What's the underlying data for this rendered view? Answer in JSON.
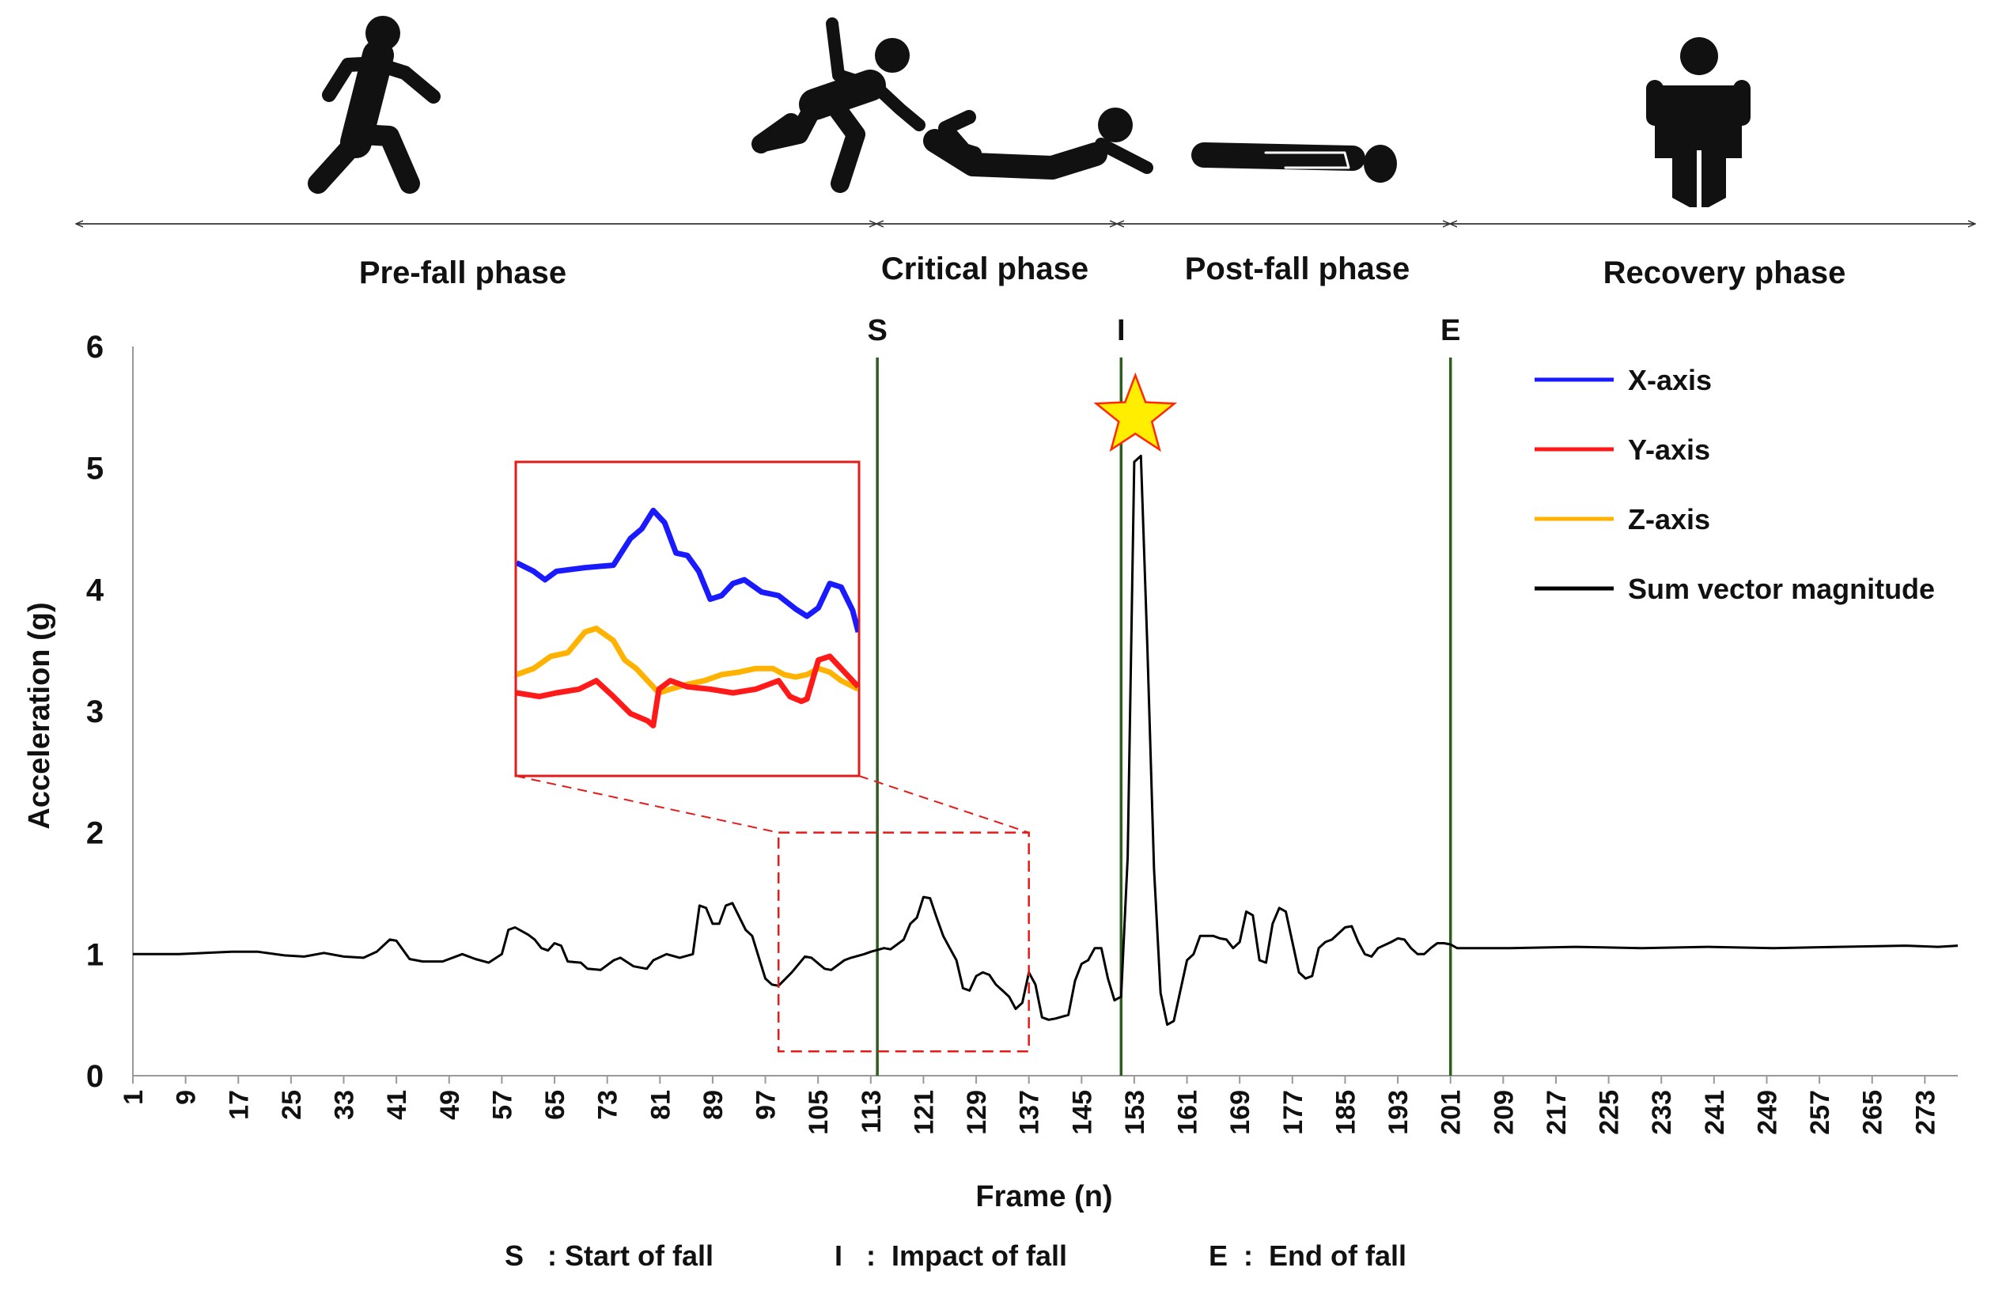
{
  "phases": [
    {
      "label": "Pre-fall phase",
      "icon": "walking-person-icon"
    },
    {
      "label": "Critical phase",
      "icon": "falling-person-icon"
    },
    {
      "label": "Post-fall phase",
      "icon": "lying-person-icon"
    },
    {
      "label": "Recovery phase",
      "icon": "standing-person-icon"
    }
  ],
  "markers": [
    {
      "label": "S",
      "frame": 114
    },
    {
      "label": "I",
      "frame": 151
    },
    {
      "label": "E",
      "frame": 201
    }
  ],
  "footnote": {
    "s": "S   : Start of fall",
    "i": "I   :  Impact of fall",
    "e": "E  :  End of fall"
  },
  "colors": {
    "x_axis": "#1a1aff",
    "y_axis": "#ff1a1a",
    "z_axis": "#ffb300",
    "svm": "#000000",
    "marker_line": "#2e5e1e",
    "star_fill": "#ffee00",
    "star_stroke": "#ff2a00",
    "zoom_box": "#e21b1b"
  },
  "chart_data": {
    "type": "line",
    "title": "",
    "xlabel": "Frame (n)",
    "ylabel": "Acceleration (g)",
    "xlim": [
      1,
      278
    ],
    "ylim": [
      0,
      6
    ],
    "yticks": [
      0,
      1,
      2,
      3,
      4,
      5,
      6
    ],
    "xticks": [
      1,
      9,
      17,
      25,
      33,
      41,
      49,
      57,
      65,
      73,
      81,
      89,
      97,
      105,
      113,
      121,
      129,
      137,
      145,
      153,
      161,
      169,
      177,
      185,
      193,
      201,
      209,
      217,
      225,
      233,
      241,
      249,
      257,
      265,
      273
    ],
    "legend": [
      "X-axis",
      "Y-axis",
      "Z-axis",
      "Sum vector magnitude"
    ],
    "series": [
      {
        "name": "Sum vector magnitude",
        "points": [
          [
            1,
            1.0
          ],
          [
            8,
            1.0
          ],
          [
            12,
            1.01
          ],
          [
            16,
            1.02
          ],
          [
            20,
            1.02
          ],
          [
            24,
            0.99
          ],
          [
            27,
            0.98
          ],
          [
            30,
            1.01
          ],
          [
            33,
            0.98
          ],
          [
            36,
            0.97
          ],
          [
            38,
            1.02
          ],
          [
            40,
            1.12
          ],
          [
            41,
            1.11
          ],
          [
            43,
            0.96
          ],
          [
            45,
            0.94
          ],
          [
            48,
            0.94
          ],
          [
            51,
            1.0
          ],
          [
            53,
            0.96
          ],
          [
            55,
            0.93
          ],
          [
            57,
            1.0
          ],
          [
            58,
            1.2
          ],
          [
            59,
            1.22
          ],
          [
            61,
            1.16
          ],
          [
            62,
            1.12
          ],
          [
            63,
            1.05
          ],
          [
            64,
            1.03
          ],
          [
            65,
            1.09
          ],
          [
            66,
            1.07
          ],
          [
            67,
            0.94
          ],
          [
            69,
            0.93
          ],
          [
            70,
            0.88
          ],
          [
            72,
            0.87
          ],
          [
            74,
            0.95
          ],
          [
            75,
            0.97
          ],
          [
            77,
            0.9
          ],
          [
            79,
            0.88
          ],
          [
            80,
            0.95
          ],
          [
            82,
            1.0
          ],
          [
            84,
            0.97
          ],
          [
            86,
            1.0
          ],
          [
            87,
            1.4
          ],
          [
            88,
            1.38
          ],
          [
            89,
            1.25
          ],
          [
            90,
            1.25
          ],
          [
            91,
            1.4
          ],
          [
            92,
            1.42
          ],
          [
            94,
            1.2
          ],
          [
            95,
            1.15
          ],
          [
            97,
            0.8
          ],
          [
            98,
            0.75
          ],
          [
            99,
            0.74
          ],
          [
            101,
            0.85
          ],
          [
            103,
            0.98
          ],
          [
            104,
            0.97
          ],
          [
            106,
            0.88
          ],
          [
            107,
            0.87
          ],
          [
            109,
            0.95
          ],
          [
            110,
            0.97
          ],
          [
            112,
            1.0
          ],
          [
            113,
            1.02
          ],
          [
            115,
            1.05
          ],
          [
            116,
            1.04
          ],
          [
            118,
            1.12
          ],
          [
            119,
            1.25
          ],
          [
            120,
            1.3
          ],
          [
            121,
            1.47
          ],
          [
            122,
            1.46
          ],
          [
            123,
            1.3
          ],
          [
            124,
            1.15
          ],
          [
            125,
            1.05
          ],
          [
            126,
            0.95
          ],
          [
            127,
            0.72
          ],
          [
            128,
            0.7
          ],
          [
            129,
            0.82
          ],
          [
            130,
            0.85
          ],
          [
            131,
            0.83
          ],
          [
            132,
            0.75
          ],
          [
            133,
            0.7
          ],
          [
            134,
            0.65
          ],
          [
            135,
            0.55
          ],
          [
            136,
            0.6
          ],
          [
            137,
            0.85
          ],
          [
            138,
            0.75
          ],
          [
            139,
            0.48
          ],
          [
            140,
            0.46
          ],
          [
            141,
            0.47
          ],
          [
            143,
            0.5
          ],
          [
            144,
            0.78
          ],
          [
            145,
            0.92
          ],
          [
            146,
            0.95
          ],
          [
            147,
            1.05
          ],
          [
            148,
            1.05
          ],
          [
            149,
            0.8
          ],
          [
            150,
            0.62
          ],
          [
            151,
            0.65
          ],
          [
            152,
            1.8
          ],
          [
            153,
            5.05
          ],
          [
            154,
            5.1
          ],
          [
            155,
            3.5
          ],
          [
            156,
            1.7
          ],
          [
            157,
            0.68
          ],
          [
            158,
            0.42
          ],
          [
            159,
            0.45
          ],
          [
            160,
            0.7
          ],
          [
            161,
            0.95
          ],
          [
            162,
            1.0
          ],
          [
            163,
            1.15
          ],
          [
            164,
            1.15
          ],
          [
            165,
            1.15
          ],
          [
            166,
            1.13
          ],
          [
            167,
            1.12
          ],
          [
            168,
            1.05
          ],
          [
            169,
            1.1
          ],
          [
            170,
            1.35
          ],
          [
            171,
            1.32
          ],
          [
            172,
            0.95
          ],
          [
            173,
            0.93
          ],
          [
            174,
            1.25
          ],
          [
            175,
            1.38
          ],
          [
            176,
            1.35
          ],
          [
            177,
            1.1
          ],
          [
            178,
            0.85
          ],
          [
            179,
            0.8
          ],
          [
            180,
            0.82
          ],
          [
            181,
            1.05
          ],
          [
            182,
            1.1
          ],
          [
            183,
            1.12
          ],
          [
            185,
            1.22
          ],
          [
            186,
            1.23
          ],
          [
            187,
            1.1
          ],
          [
            188,
            1.0
          ],
          [
            189,
            0.98
          ],
          [
            190,
            1.05
          ],
          [
            192,
            1.1
          ],
          [
            193,
            1.13
          ],
          [
            194,
            1.12
          ],
          [
            195,
            1.05
          ],
          [
            196,
            1.0
          ],
          [
            197,
            1.0
          ],
          [
            198,
            1.05
          ],
          [
            199,
            1.09
          ],
          [
            200,
            1.09
          ],
          [
            201,
            1.08
          ],
          [
            202,
            1.05
          ],
          [
            210,
            1.05
          ],
          [
            220,
            1.06
          ],
          [
            230,
            1.05
          ],
          [
            240,
            1.06
          ],
          [
            250,
            1.05
          ],
          [
            260,
            1.06
          ],
          [
            270,
            1.07
          ],
          [
            275,
            1.06
          ],
          [
            278,
            1.07
          ]
        ]
      },
      {
        "name": "X-axis",
        "inset": true,
        "points": [
          [
            0,
            4.22
          ],
          [
            3,
            4.15
          ],
          [
            5,
            4.08
          ],
          [
            7,
            4.15
          ],
          [
            12,
            4.18
          ],
          [
            17,
            4.2
          ],
          [
            20,
            4.42
          ],
          [
            22,
            4.5
          ],
          [
            24,
            4.65
          ],
          [
            26,
            4.55
          ],
          [
            28,
            4.3
          ],
          [
            30,
            4.28
          ],
          [
            32,
            4.15
          ],
          [
            34,
            3.92
          ],
          [
            36,
            3.95
          ],
          [
            38,
            4.05
          ],
          [
            40,
            4.08
          ],
          [
            43,
            3.98
          ],
          [
            46,
            3.95
          ],
          [
            49,
            3.84
          ],
          [
            51,
            3.78
          ],
          [
            53,
            3.85
          ],
          [
            55,
            4.05
          ],
          [
            57,
            4.02
          ],
          [
            59,
            3.83
          ],
          [
            60,
            3.65
          ]
        ]
      },
      {
        "name": "Y-axis",
        "inset": true,
        "points": [
          [
            0,
            3.15
          ],
          [
            4,
            3.12
          ],
          [
            7,
            3.15
          ],
          [
            11,
            3.18
          ],
          [
            14,
            3.25
          ],
          [
            17,
            3.12
          ],
          [
            20,
            2.98
          ],
          [
            23,
            2.92
          ],
          [
            24,
            2.88
          ],
          [
            25,
            3.18
          ],
          [
            27,
            3.25
          ],
          [
            30,
            3.2
          ],
          [
            34,
            3.18
          ],
          [
            38,
            3.15
          ],
          [
            42,
            3.18
          ],
          [
            46,
            3.25
          ],
          [
            48,
            3.12
          ],
          [
            50,
            3.08
          ],
          [
            51,
            3.1
          ],
          [
            53,
            3.42
          ],
          [
            55,
            3.45
          ],
          [
            57,
            3.35
          ],
          [
            60,
            3.2
          ]
        ]
      },
      {
        "name": "Z-axis",
        "inset": true,
        "points": [
          [
            0,
            3.3
          ],
          [
            3,
            3.35
          ],
          [
            6,
            3.45
          ],
          [
            9,
            3.48
          ],
          [
            12,
            3.65
          ],
          [
            14,
            3.68
          ],
          [
            17,
            3.58
          ],
          [
            19,
            3.42
          ],
          [
            21,
            3.35
          ],
          [
            23,
            3.25
          ],
          [
            25,
            3.15
          ],
          [
            27,
            3.18
          ],
          [
            30,
            3.22
          ],
          [
            33,
            3.25
          ],
          [
            36,
            3.3
          ],
          [
            39,
            3.32
          ],
          [
            42,
            3.35
          ],
          [
            45,
            3.35
          ],
          [
            47,
            3.3
          ],
          [
            49,
            3.28
          ],
          [
            51,
            3.3
          ],
          [
            53,
            3.35
          ],
          [
            55,
            3.32
          ],
          [
            57,
            3.25
          ],
          [
            60,
            3.18
          ]
        ]
      }
    ],
    "zoom_region": {
      "frames": [
        99,
        137
      ],
      "g": [
        0.2,
        2.0
      ]
    },
    "peak_marker": {
      "frame": 154,
      "value": 5.1,
      "shape": "star"
    }
  }
}
